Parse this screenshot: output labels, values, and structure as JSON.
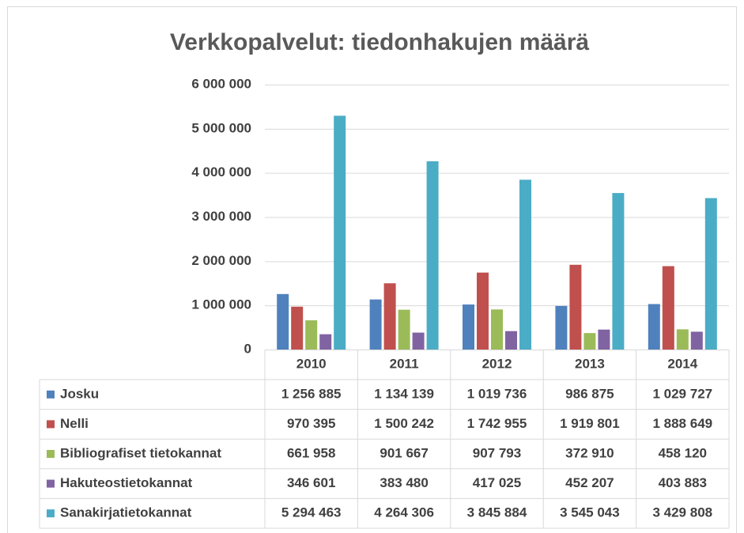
{
  "chart_data": {
    "type": "bar",
    "title": "Verkkopalvelut: tiedonhakujen määrä",
    "categories": [
      "2010",
      "2011",
      "2012",
      "2013",
      "2014"
    ],
    "series": [
      {
        "name": "Josku",
        "color": "#4f81bd",
        "values": [
          1256885,
          1134139,
          1019736,
          986875,
          1029727
        ],
        "value_labels": [
          "1 256 885",
          "1 134 139",
          "1 019 736",
          "986 875",
          "1 029 727"
        ]
      },
      {
        "name": "Nelli",
        "color": "#c0504d",
        "values": [
          970395,
          1500242,
          1742955,
          1919801,
          1888649
        ],
        "value_labels": [
          "970 395",
          "1 500 242",
          "1 742 955",
          "1 919 801",
          "1 888 649"
        ]
      },
      {
        "name": "Bibliografiset tietokannat",
        "color": "#9bbb59",
        "values": [
          661958,
          901667,
          907793,
          372910,
          458120
        ],
        "value_labels": [
          "661 958",
          "901 667",
          "907 793",
          "372 910",
          "458 120"
        ]
      },
      {
        "name": "Hakuteostietokannat",
        "color": "#8064a2",
        "values": [
          346601,
          383480,
          417025,
          452207,
          403883
        ],
        "value_labels": [
          "346 601",
          "383 480",
          "417 025",
          "452 207",
          "403 883"
        ]
      },
      {
        "name": "Sanakirjatietokannat",
        "color": "#4bacc6",
        "values": [
          5294463,
          4264306,
          3845884,
          3545043,
          3429808
        ],
        "value_labels": [
          "5 294 463",
          "4 264 306",
          "3 845 884",
          "3 545 043",
          "3 429 808"
        ]
      }
    ],
    "ylim": [
      0,
      6000000
    ],
    "yticks": [
      0,
      {
        "value": 1000000,
        "label": "1 000 000"
      },
      {
        "value": 2000000,
        "label": "2 000 000"
      },
      {
        "value": 3000000,
        "label": "3 000 000"
      },
      {
        "value": 4000000,
        "label": "4 000 000"
      },
      {
        "value": 5000000,
        "label": "5 000 000"
      },
      {
        "value": 6000000,
        "label": "6 000 000"
      }
    ],
    "grid": true
  }
}
